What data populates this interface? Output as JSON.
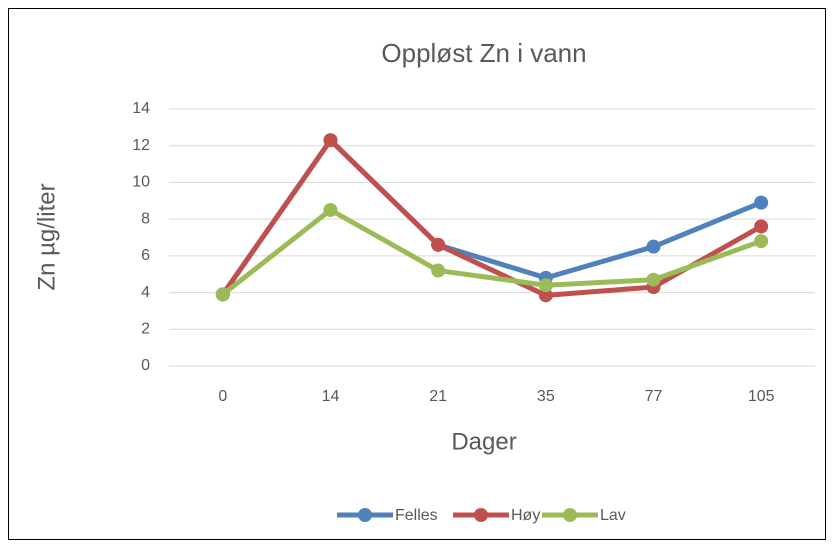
{
  "chart_data": {
    "type": "line",
    "title": "Oppløst Zn i vann",
    "x_label": "Dager",
    "y_label": "Zn µg/liter",
    "categories": [
      "0",
      "14",
      "21",
      "35",
      "77",
      "105"
    ],
    "series": [
      {
        "name": "Felles",
        "color": "#4f81bd",
        "values": [
          3.9,
          12.3,
          6.6,
          4.8,
          6.5,
          8.9
        ]
      },
      {
        "name": "Høy",
        "color": "#c0504d",
        "values": [
          3.9,
          12.3,
          6.6,
          3.85,
          4.3,
          7.6
        ]
      },
      {
        "name": "Lav",
        "color": "#9bbb59",
        "values": [
          3.9,
          8.5,
          5.2,
          4.4,
          4.7,
          6.8
        ]
      }
    ],
    "ylim": [
      0,
      14
    ],
    "yticks": [
      0,
      2,
      4,
      6,
      8,
      10,
      12,
      14
    ],
    "grid": true,
    "legend": "bottom"
  }
}
